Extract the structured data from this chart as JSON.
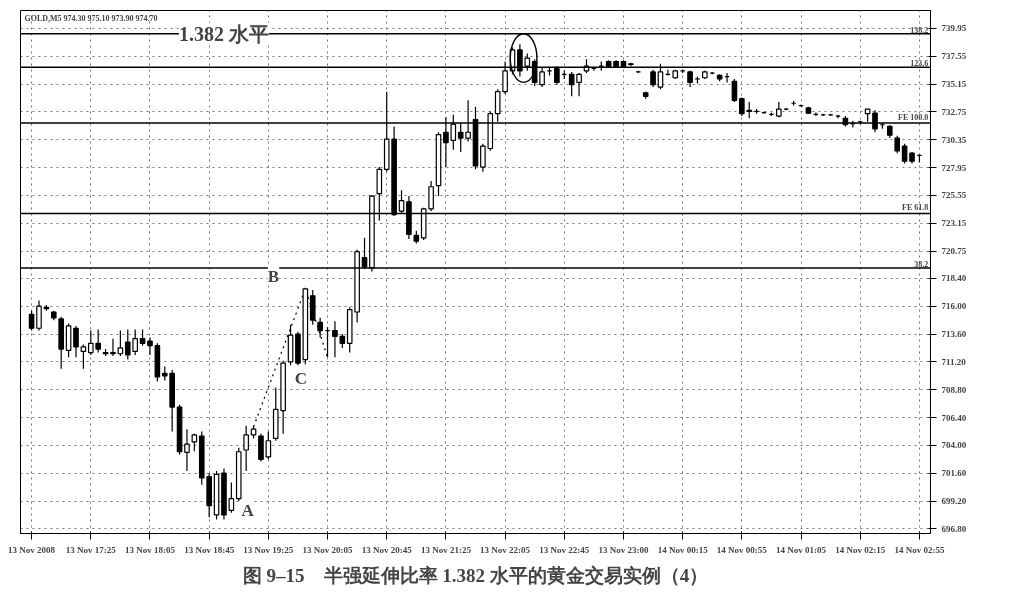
{
  "chart_data": {
    "type": "candlestick",
    "title": "图 9–15　半强延伸比率 1.382 水平的黄金交易实例（4）",
    "categories": [
      "13 Nov 2008",
      null,
      null,
      null,
      null,
      null,
      null,
      null,
      "13 Nov 17:25",
      null,
      null,
      null,
      null,
      null,
      null,
      null,
      "13 Nov 18:05",
      null,
      null,
      null,
      null,
      null,
      null,
      null,
      "13 Nov 18:45",
      null,
      null,
      null,
      null,
      null,
      null,
      null,
      "13 Nov 19:25",
      null,
      null,
      null,
      null,
      null,
      null,
      null,
      "13 Nov 20:05",
      null,
      null,
      null,
      null,
      null,
      null,
      null,
      "13 Nov 20:45",
      null,
      null,
      null,
      null,
      null,
      null,
      null,
      "13 Nov 21:25",
      null,
      null,
      null,
      null,
      null,
      null,
      null,
      "13 Nov 22:05",
      null,
      null,
      null,
      null,
      null,
      null,
      null,
      "13 Nov 22:45",
      null,
      null,
      null,
      null,
      null,
      null,
      null,
      "13 Nov 23:00",
      null,
      null,
      null,
      null,
      null,
      null,
      null,
      "14 Nov 00:15",
      null,
      null,
      null,
      null,
      null,
      null,
      null,
      "14 Nov 00:55",
      null,
      null,
      null,
      null,
      null,
      null,
      null,
      "14 Nov 01:05",
      null,
      null,
      null,
      null,
      null,
      null,
      null,
      "14 Nov 02:15",
      null,
      null,
      null,
      null,
      null,
      null,
      null,
      "14 Nov 02:55"
    ],
    "ohlc": [
      [
        715.3,
        715.6,
        713.9,
        714.1
      ],
      [
        714.1,
        716.5,
        713.9,
        716.0
      ],
      [
        715.9,
        716.1,
        715.6,
        715.8
      ],
      [
        715.5,
        715.6,
        714.8,
        715.0
      ],
      [
        714.9,
        715.1,
        710.6,
        712.3
      ],
      [
        712.2,
        714.5,
        711.6,
        714.3
      ],
      [
        714.1,
        714.3,
        711.6,
        712.5
      ],
      [
        712.1,
        712.7,
        710.6,
        712.5
      ],
      [
        712.0,
        713.9,
        711.8,
        712.8
      ],
      [
        712.8,
        714.0,
        712.0,
        712.3
      ],
      [
        712.0,
        712.3,
        711.7,
        711.9
      ],
      [
        711.9,
        713.2,
        711.7,
        712.0
      ],
      [
        711.9,
        713.9,
        711.7,
        712.4
      ],
      [
        712.9,
        714.0,
        711.4,
        711.8
      ],
      [
        712.1,
        714.0,
        711.8,
        713.2
      ],
      [
        713.2,
        714.0,
        712.6,
        712.8
      ],
      [
        713.0,
        713.3,
        711.8,
        712.6
      ],
      [
        712.6,
        712.8,
        709.5,
        709.9
      ],
      [
        710.2,
        710.8,
        709.6,
        710.0
      ],
      [
        710.2,
        710.5,
        705.2,
        707.3
      ],
      [
        707.3,
        707.5,
        703.2,
        703.45
      ],
      [
        703.4,
        705.4,
        701.8,
        704.1
      ],
      [
        704.3,
        705.0,
        703.5,
        704.9
      ],
      [
        704.8,
        705.2,
        700.6,
        701.2
      ],
      [
        701.3,
        701.6,
        697.8,
        698.8
      ],
      [
        698.0,
        701.8,
        697.6,
        701.5
      ],
      [
        701.6,
        702.0,
        697.6,
        698.0
      ],
      [
        698.4,
        700.8,
        698.2,
        699.4
      ],
      [
        699.4,
        703.8,
        699.2,
        703.45
      ],
      [
        703.6,
        705.7,
        701.8,
        704.9
      ],
      [
        704.9,
        705.7,
        704.6,
        705.4
      ],
      [
        704.8,
        705.0,
        702.6,
        702.8
      ],
      [
        703.0,
        705.2,
        702.8,
        704.4
      ],
      [
        704.6,
        709.0,
        704.4,
        707.1
      ],
      [
        707.0,
        711.3,
        705.0,
        711.1
      ],
      [
        711.2,
        714.4,
        710.9,
        713.5
      ],
      [
        713.6,
        713.8,
        710.9,
        711.1
      ],
      [
        711.4,
        717.6,
        711.0,
        717.5
      ],
      [
        716.9,
        717.4,
        714.4,
        714.8
      ],
      [
        714.6,
        715.0,
        713.3,
        713.9
      ],
      [
        713.9,
        714.2,
        711.6,
        713.9
      ],
      [
        713.9,
        714.7,
        711.6,
        713.4
      ],
      [
        713.4,
        713.6,
        712.4,
        712.8
      ],
      [
        712.8,
        715.9,
        712.0,
        715.7
      ],
      [
        715.5,
        720.9,
        714.6,
        720.7
      ],
      [
        720.2,
        721.9,
        719.2,
        719.4
      ],
      [
        719.3,
        725.6,
        719.0,
        725.5
      ],
      [
        725.7,
        728.0,
        723.4,
        727.8
      ],
      [
        727.8,
        734.5,
        727.6,
        730.4
      ],
      [
        730.4,
        731.5,
        723.8,
        723.9
      ],
      [
        724.2,
        726.0,
        724.0,
        725.1
      ],
      [
        725.0,
        725.5,
        721.8,
        722.2
      ],
      [
        722.1,
        722.5,
        721.4,
        721.6
      ],
      [
        721.9,
        724.5,
        721.7,
        724.4
      ],
      [
        724.4,
        726.8,
        724.2,
        726.3
      ],
      [
        726.4,
        731.0,
        725.5,
        730.8
      ],
      [
        731.0,
        732.3,
        728.0,
        730.1
      ],
      [
        730.3,
        732.5,
        729.5,
        731.7
      ],
      [
        731.0,
        731.8,
        729.3,
        730.5
      ],
      [
        730.5,
        733.75,
        730.2,
        731.0
      ],
      [
        732.1,
        733.2,
        727.8,
        728.1
      ],
      [
        728.0,
        730.0,
        727.6,
        729.8
      ],
      [
        729.6,
        732.8,
        729.4,
        732.6
      ],
      [
        732.6,
        734.7,
        731.9,
        734.5
      ],
      [
        734.5,
        737.1,
        734.3,
        736.3
      ],
      [
        736.3,
        738.3,
        736.0,
        738.1
      ],
      [
        738.1,
        738.6,
        735.8,
        736.3
      ],
      [
        736.7,
        737.8,
        736.3,
        737.4
      ],
      [
        737.1,
        737.3,
        735.0,
        735.3
      ],
      [
        735.1,
        736.6,
        734.9,
        736.2
      ],
      [
        736.3,
        736.6,
        735.9,
        736.3
      ],
      [
        736.5,
        736.7,
        735.1,
        735.3
      ],
      [
        736.0,
        736.3,
        735.6,
        736.0
      ],
      [
        736.0,
        736.2,
        734.1,
        735.1
      ],
      [
        735.3,
        736.1,
        734.1,
        736.0
      ],
      [
        736.3,
        737.3,
        736.1,
        736.7
      ],
      [
        736.5,
        736.6,
        736.3,
        736.5
      ],
      [
        736.7,
        737.1,
        736.3,
        736.7
      ],
      [
        737.1,
        737.2,
        736.6,
        736.7
      ],
      [
        737.1,
        737.2,
        736.6,
        736.7
      ],
      [
        737.1,
        737.2,
        736.6,
        736.7
      ],
      [
        736.9,
        737.0,
        736.7,
        736.85
      ],
      [
        736.2,
        736.3,
        736.1,
        736.2
      ],
      [
        734.4,
        734.5,
        733.9,
        734.1
      ],
      [
        736.2,
        736.4,
        734.9,
        735.1
      ],
      [
        734.9,
        736.9,
        734.7,
        736.2
      ],
      [
        736.0,
        736.4,
        735.9,
        736.0
      ],
      [
        735.7,
        736.4,
        735.6,
        736.3
      ],
      [
        736.3,
        736.4,
        736.1,
        736.3
      ],
      [
        736.2,
        736.3,
        734.9,
        735.3
      ],
      [
        735.6,
        735.8,
        735.2,
        735.6
      ],
      [
        735.7,
        736.3,
        735.6,
        736.2
      ],
      [
        736.1,
        736.2,
        736.0,
        736.1
      ],
      [
        735.9,
        736.0,
        735.4,
        735.6
      ],
      [
        735.8,
        736.1,
        735.3,
        735.8
      ],
      [
        735.4,
        735.6,
        733.6,
        733.75
      ],
      [
        733.9,
        734.0,
        732.4,
        732.6
      ],
      [
        732.9,
        733.6,
        732.2,
        732.8
      ],
      [
        732.8,
        733.0,
        732.6,
        732.8
      ],
      [
        732.7,
        732.8,
        732.6,
        732.7
      ],
      [
        732.55,
        732.7,
        732.4,
        732.55
      ],
      [
        732.4,
        733.6,
        732.3,
        733.0
      ],
      [
        733.0,
        733.1,
        732.9,
        733.0
      ],
      [
        733.5,
        733.7,
        733.3,
        733.5
      ],
      [
        733.3,
        733.4,
        733.2,
        733.3
      ],
      [
        733.1,
        733.2,
        732.6,
        732.65
      ],
      [
        732.55,
        732.7,
        732.4,
        732.55
      ],
      [
        732.5,
        732.6,
        732.4,
        732.5
      ],
      [
        732.5,
        732.6,
        732.4,
        732.5
      ],
      [
        732.4,
        732.5,
        732.2,
        732.4
      ],
      [
        732.2,
        732.4,
        731.5,
        731.65
      ],
      [
        731.75,
        732.0,
        731.4,
        731.75
      ],
      [
        731.9,
        732.0,
        731.7,
        731.9
      ],
      [
        732.6,
        733.0,
        731.9,
        733.0
      ],
      [
        732.65,
        732.9,
        731.0,
        731.3
      ],
      [
        731.65,
        731.8,
        731.3,
        731.65
      ],
      [
        731.5,
        731.6,
        730.5,
        730.75
      ],
      [
        730.5,
        730.7,
        729.2,
        729.4
      ],
      [
        729.8,
        730.0,
        728.3,
        728.5
      ],
      [
        729.2,
        729.3,
        728.3,
        728.5
      ],
      [
        729.0,
        729.1,
        728.4,
        729.0
      ]
    ],
    "series": [
      {
        "type": "line",
        "color": "#000000",
        "line_style": "dotted",
        "values": [
          null,
          null,
          null,
          null,
          null,
          null,
          null,
          null,
          null,
          null,
          null,
          null,
          null,
          null,
          null,
          null,
          null,
          null,
          null,
          null,
          null,
          null,
          null,
          null,
          null,
          null,
          null,
          null,
          null,
          null,
          705.6,
          null,
          null,
          null,
          null,
          null,
          null,
          717.5,
          null,
          null,
          711.6,
          null,
          null,
          null,
          null,
          null,
          null,
          null,
          null,
          null,
          null,
          null,
          null,
          null,
          null,
          null,
          null,
          null,
          null,
          null,
          null,
          null,
          null,
          null,
          null,
          null,
          null,
          null,
          null,
          null,
          null,
          null,
          null,
          null,
          null,
          null,
          null,
          null,
          null,
          null,
          null,
          null,
          null,
          null,
          null,
          null,
          null,
          null,
          null,
          null,
          null,
          null,
          null,
          null,
          null,
          null,
          null,
          null,
          null,
          null,
          null,
          null,
          null,
          null,
          null,
          null,
          null,
          null,
          null,
          null,
          null,
          null,
          null,
          null,
          null,
          null,
          null,
          null,
          null,
          null,
          null
        ]
      }
    ],
    "ylim": [
      696.4,
      741.5
    ],
    "yticks": [
      {
        "value": 696.8,
        "label": "696.80"
      },
      {
        "value": 699.2,
        "label": "699.20"
      },
      {
        "value": 701.6,
        "label": "701.60"
      },
      {
        "value": 704.0,
        "label": "704.00"
      },
      {
        "value": 706.4,
        "label": "706.40"
      },
      {
        "value": 708.8,
        "label": "708.80"
      },
      {
        "value": 711.2,
        "label": "711.20"
      },
      {
        "value": 713.6,
        "label": "713.60"
      },
      {
        "value": 716.0,
        "label": "716.00"
      },
      {
        "value": 718.4,
        "label": "718.40"
      },
      {
        "value": 720.75,
        "label": "720.75"
      },
      {
        "value": 723.15,
        "label": "723.15"
      },
      {
        "value": 725.55,
        "label": "725.55"
      },
      {
        "value": 727.95,
        "label": "727.95"
      },
      {
        "value": 730.35,
        "label": "730.35"
      },
      {
        "value": 732.75,
        "label": "732.75"
      },
      {
        "value": 735.15,
        "label": "735.15"
      },
      {
        "value": 737.55,
        "label": "737.55"
      },
      {
        "value": 739.95,
        "label": "739.95"
      }
    ],
    "grid": true,
    "ref_lines": [
      {
        "axis": "y",
        "value": 739.5,
        "color": "#000000"
      },
      {
        "axis": "y",
        "value": 736.6,
        "color": "#000000"
      },
      {
        "axis": "y",
        "value": 731.8,
        "color": "#000000"
      },
      {
        "axis": "y",
        "value": 724.0,
        "color": "#000000"
      },
      {
        "axis": "y",
        "value": 719.3,
        "color": "#000000"
      }
    ],
    "annotations": [
      "GOLD,M5 974.30 975.10 973.90 974.70",
      {
        "text": "1.382 水平",
        "y": 739.5
      },
      {
        "text": "138.2",
        "y": 739.5
      },
      {
        "text": "123.6",
        "y": 736.6
      },
      {
        "text": "FE 100.0",
        "y": 731.8
      },
      {
        "text": "FE 61.8",
        "y": 724.0
      },
      {
        "text": "38.2",
        "y": 719.3
      },
      "A",
      "B",
      "C"
    ]
  }
}
